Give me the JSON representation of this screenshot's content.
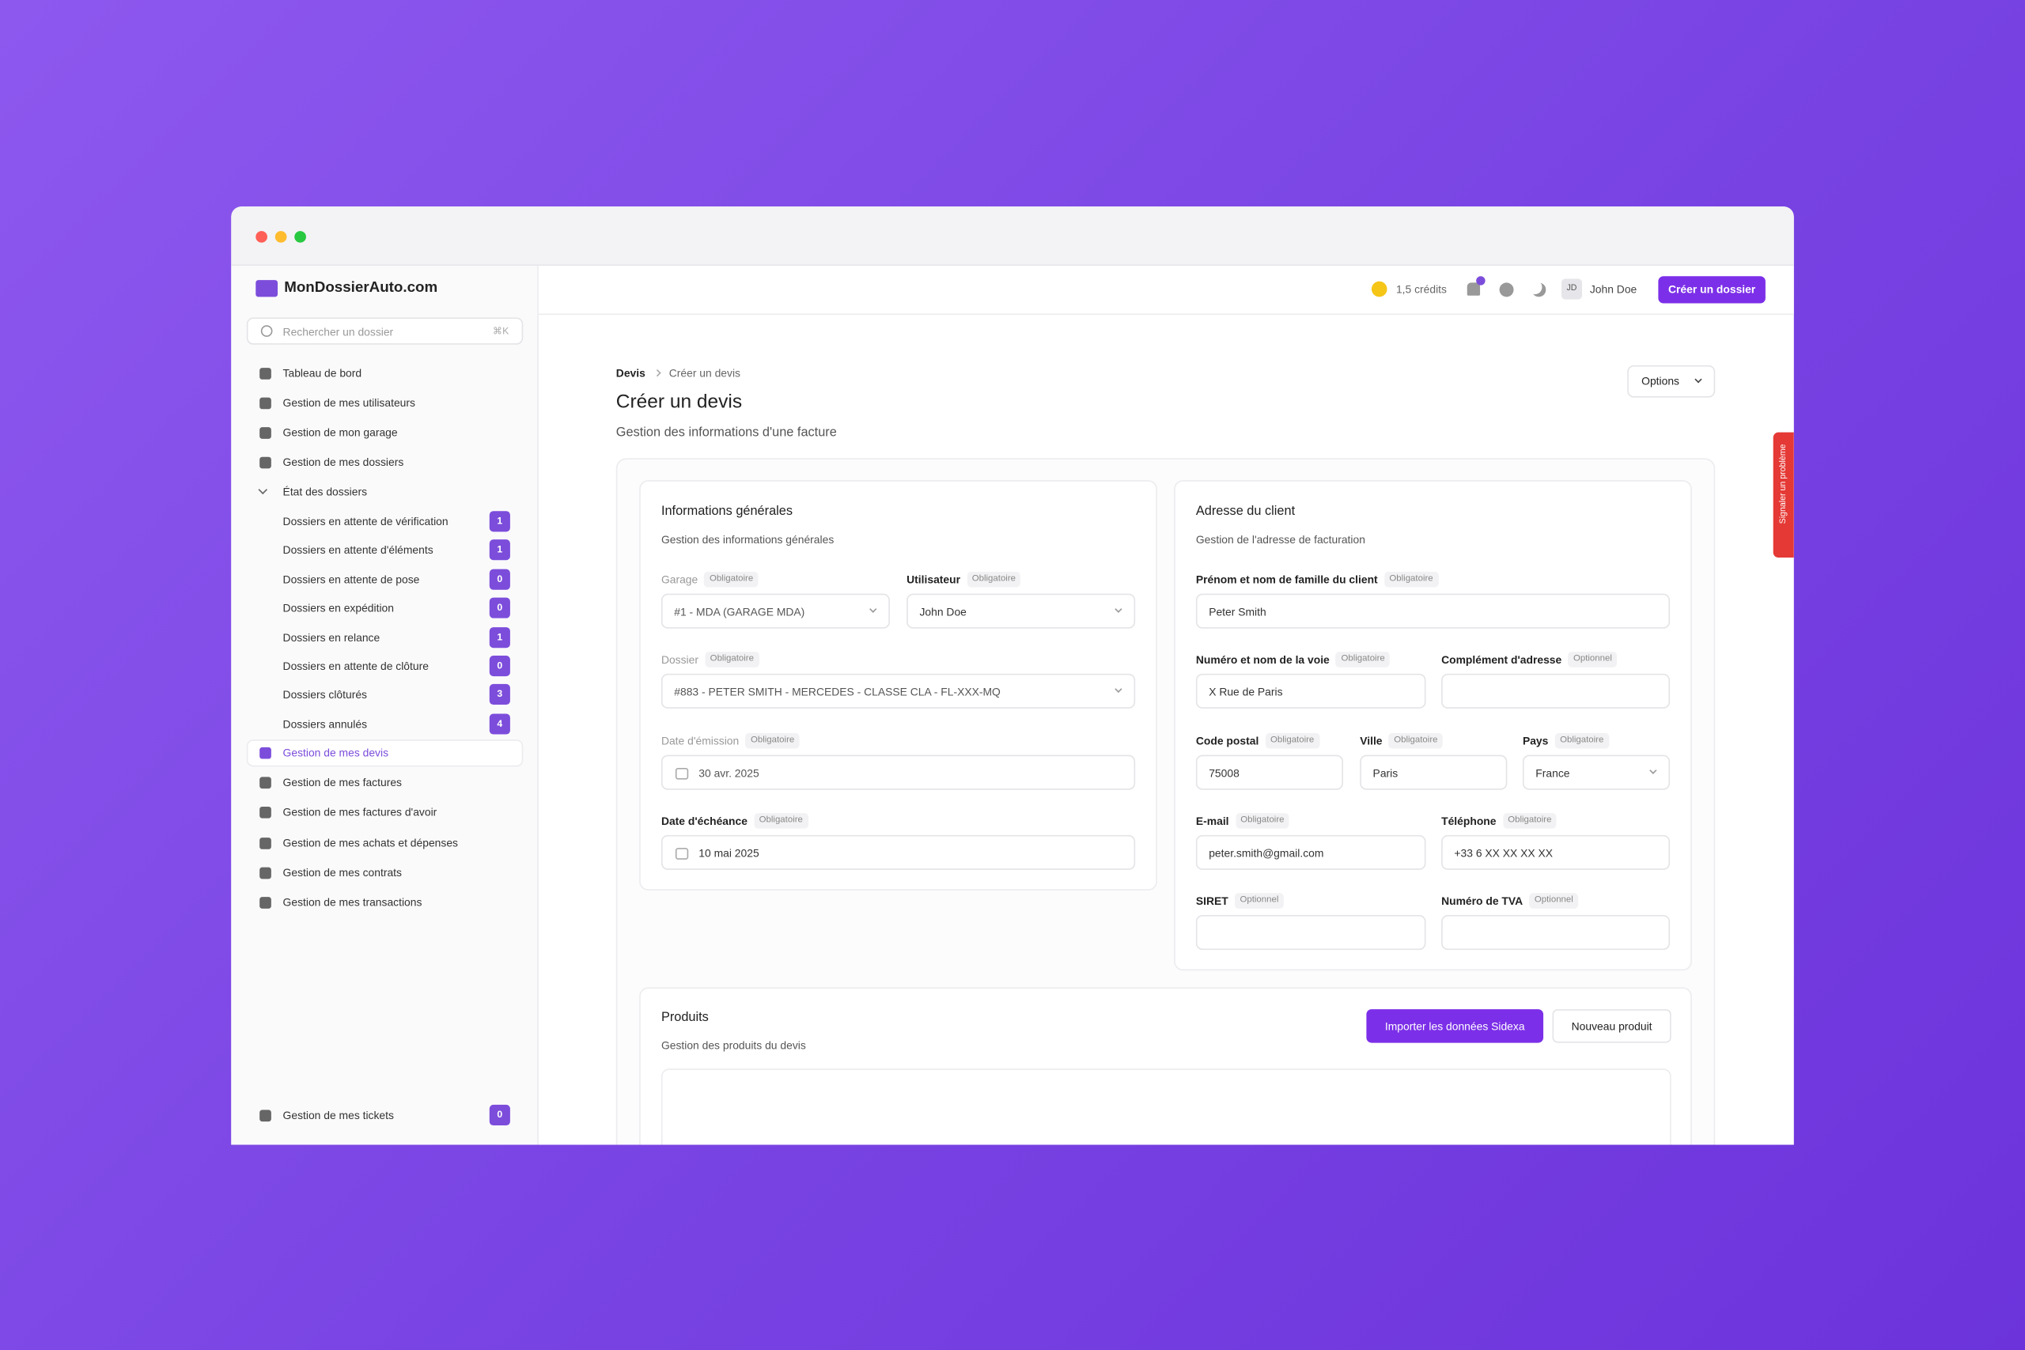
{
  "window": {
    "brand": "MonDossierAuto.com",
    "search_placeholder": "Rechercher un dossier",
    "search_shortcut": "⌘K",
    "feedback_tab": "Signaler un problème"
  },
  "sidebar": {
    "top": [
      "Tableau de bord",
      "Gestion de mes utilisateurs",
      "Gestion de mon garage",
      "Gestion de mes dossiers"
    ],
    "group": {
      "label": "État des dossiers",
      "items": [
        {
          "label": "Dossiers en attente de vérification",
          "count": 1
        },
        {
          "label": "Dossiers en attente d'éléments",
          "count": 1
        },
        {
          "label": "Dossiers en attente de pose",
          "count": 0
        },
        {
          "label": "Dossiers en expédition",
          "count": 0
        },
        {
          "label": "Dossiers en relance",
          "count": 1
        },
        {
          "label": "Dossiers en attente de clôture",
          "count": 0
        },
        {
          "label": "Dossiers clôturés",
          "count": 3
        },
        {
          "label": "Dossiers annulés",
          "count": 4
        }
      ]
    },
    "bottom": [
      "Gestion de mes devis",
      "Gestion de mes factures",
      "Gestion de mes factures d'avoir",
      "Gestion de mes achats et dépenses",
      "Gestion de mes contrats",
      "Gestion de mes transactions"
    ],
    "footer": {
      "label": "Gestion de mes tickets",
      "count": 0
    }
  },
  "topbar": {
    "credits": "1,5 crédits",
    "user_initials": "JD",
    "user_name": "John Doe",
    "create_button": "Créer un dossier"
  },
  "page": {
    "breadcrumb": [
      "Devis",
      "Créer un devis"
    ],
    "title": "Créer un devis",
    "subtitle": "Gestion des informations d'une facture",
    "options": "Options"
  },
  "general": {
    "title": "Informations générales",
    "subtitle": "Gestion des informations générales",
    "fields": [
      {
        "label": "Garage",
        "tag": "Obligatoire",
        "value": "#1 - MDA (GARAGE MDA)"
      },
      {
        "label": "Utilisateur",
        "tag": "Obligatoire",
        "value": "John Doe"
      },
      {
        "label": "Dossier",
        "tag": "Obligatoire",
        "value": "#883 - PETER SMITH - MERCEDES - CLASSE CLA - FL-XXX-MQ"
      },
      {
        "label": "Date d'émission",
        "tag": "Obligatoire",
        "value": "30 avr. 2025"
      },
      {
        "label": "Date d'échéance",
        "tag": "Obligatoire",
        "value": "10 mai 2025"
      }
    ]
  },
  "client": {
    "title": "Adresse du client",
    "subtitle": "Gestion de l'adresse de facturation",
    "fields": [
      {
        "label": "Prénom et nom de famille du client",
        "tag": "Obligatoire",
        "value": "Peter Smith"
      },
      {
        "label": "Numéro et nom de la voie",
        "tag": "Obligatoire",
        "value": "X Rue de Paris"
      },
      {
        "label": "Complément d'adresse",
        "tag": "Optionnel"
      },
      {
        "label": "Code postal",
        "tag": "Obligatoire",
        "value": "75008"
      },
      {
        "label": "Ville",
        "tag": "Obligatoire",
        "value": "Paris"
      },
      {
        "label": "Pays",
        "tag": "Obligatoire",
        "value": "France"
      },
      {
        "label": "E-mail",
        "tag": "Obligatoire",
        "value": "peter.smith@gmail.com"
      },
      {
        "label": "Téléphone",
        "tag": "Obligatoire",
        "value": "+33 6 XX XX XX XX"
      },
      {
        "label": "SIRET",
        "tag": "Optionnel"
      },
      {
        "label": "Numéro de TVA",
        "tag": "Optionnel"
      }
    ]
  },
  "products": {
    "title": "Produits",
    "subtitle": "Gestion des produits du devis",
    "import_button": "Importer les données Sidexa",
    "new_button": "Nouveau produit"
  }
}
